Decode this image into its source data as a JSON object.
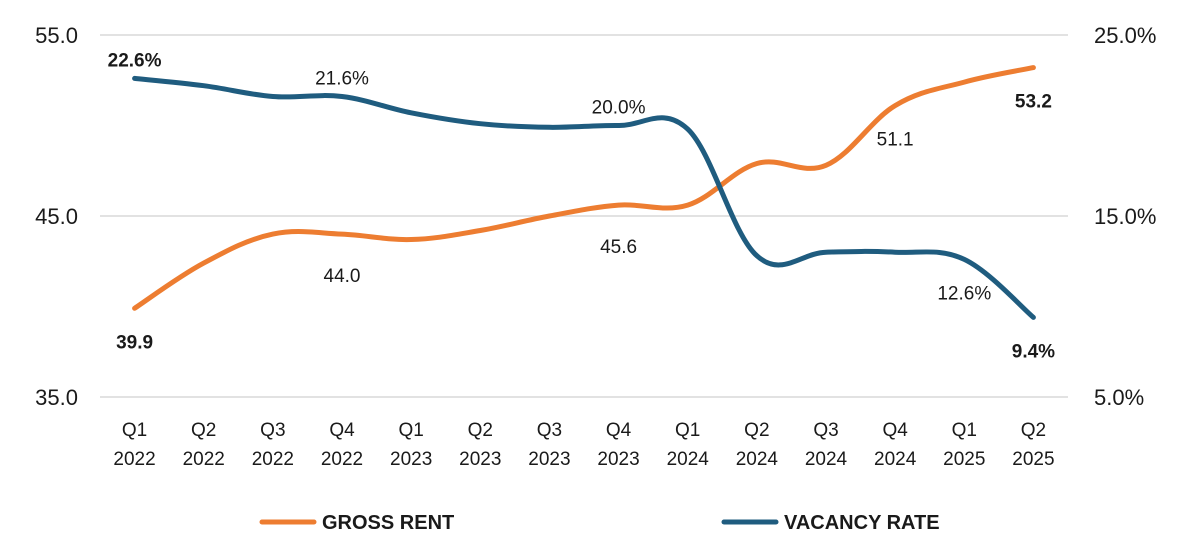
{
  "chart_data": {
    "type": "line",
    "categories": [
      [
        "Q1",
        "2022"
      ],
      [
        "Q2",
        "2022"
      ],
      [
        "Q3",
        "2022"
      ],
      [
        "Q4",
        "2022"
      ],
      [
        "Q1",
        "2023"
      ],
      [
        "Q2",
        "2023"
      ],
      [
        "Q3",
        "2023"
      ],
      [
        "Q4",
        "2023"
      ],
      [
        "Q1",
        "2024"
      ],
      [
        "Q2",
        "2024"
      ],
      [
        "Q3",
        "2024"
      ],
      [
        "Q4",
        "2024"
      ],
      [
        "Q1",
        "2025"
      ],
      [
        "Q2",
        "2025"
      ]
    ],
    "series": [
      {
        "name": "GROSS RENT",
        "axis": "left",
        "color": "#ED7D31",
        "values": [
          39.9,
          42.4,
          44.0,
          44.0,
          43.7,
          44.2,
          45.0,
          45.6,
          45.6,
          47.9,
          47.8,
          51.1,
          52.4,
          53.2
        ],
        "labels": [
          {
            "index": 0,
            "text": "39.9",
            "bold": true,
            "position": "below"
          },
          {
            "index": 3,
            "text": "44.0",
            "bold": false,
            "position": "below"
          },
          {
            "index": 7,
            "text": "45.6",
            "bold": false,
            "position": "below"
          },
          {
            "index": 11,
            "text": "51.1",
            "bold": false,
            "position": "below"
          },
          {
            "index": 13,
            "text": "53.2",
            "bold": true,
            "position": "below"
          }
        ]
      },
      {
        "name": "VACANCY RATE",
        "axis": "right",
        "color": "#1F5C7F",
        "values": [
          22.6,
          22.2,
          21.6,
          21.6,
          20.7,
          20.1,
          19.9,
          20.0,
          19.8,
          12.8,
          13.0,
          13.0,
          12.6,
          9.4
        ],
        "labels": [
          {
            "index": 0,
            "text": "22.6%",
            "bold": true,
            "position": "above"
          },
          {
            "index": 3,
            "text": "21.6%",
            "bold": false,
            "position": "above"
          },
          {
            "index": 7,
            "text": "20.0%",
            "bold": false,
            "position": "above"
          },
          {
            "index": 12,
            "text": "12.6%",
            "bold": false,
            "position": "below"
          },
          {
            "index": 13,
            "text": "9.4%",
            "bold": true,
            "position": "below"
          }
        ]
      }
    ],
    "y_left": {
      "min": 35.0,
      "max": 55.0,
      "ticks": [
        55.0,
        45.0,
        35.0
      ],
      "tick_labels": [
        "55.0",
        "45.0",
        "35.0"
      ]
    },
    "y_right": {
      "min": 5.0,
      "max": 25.0,
      "ticks": [
        25.0,
        15.0,
        5.0
      ],
      "tick_labels": [
        "25.0%",
        "15.0%",
        "5.0%"
      ]
    },
    "grid": true,
    "legend": {
      "placement": "bottom",
      "items": [
        "GROSS RENT",
        "VACANCY RATE"
      ]
    },
    "title": "",
    "xlabel": "",
    "ylabel": ""
  }
}
